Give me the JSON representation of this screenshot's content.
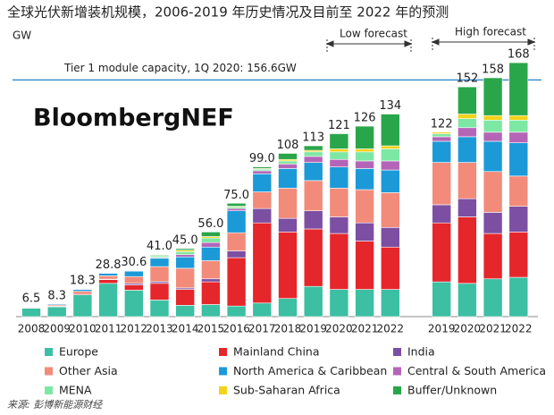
{
  "chart_data": {
    "type": "stacked_bar",
    "title": "全球光伏新增装机规模，2006-2019 年历史情况及目前至 2022 年的预测",
    "unit_label": "GW",
    "watermark": "BloombergNEF",
    "categories": [
      "2008",
      "2009",
      "2010",
      "2011",
      "2012",
      "2013",
      "2014",
      "2015",
      "2016",
      "2017",
      "2018",
      "2019",
      "2020",
      "2021",
      "2022",
      null,
      "2019",
      "2020",
      "2021",
      "2022"
    ],
    "series": [
      {
        "name": "Europe",
        "color": "#3cbfa3",
        "values": [
          5.5,
          6.5,
          14.5,
          22,
          17.5,
          11,
          7.5,
          8,
          7,
          9,
          12,
          20,
          18,
          18,
          18,
          null,
          23,
          22,
          25,
          26
        ]
      },
      {
        "name": "Mainland China",
        "color": "#e5262b",
        "values": [
          0.2,
          0.4,
          0.8,
          2.5,
          3.5,
          11,
          10.5,
          15,
          32,
          53,
          44,
          38,
          37,
          32,
          28,
          null,
          39,
          44,
          30,
          30
        ]
      },
      {
        "name": "India",
        "color": "#7c4fa3",
        "values": [
          0,
          0,
          0,
          0.3,
          1,
          1.1,
          1,
          2,
          4.5,
          9.5,
          9,
          12,
          11,
          12,
          13,
          null,
          12,
          12,
          14,
          17
        ]
      },
      {
        "name": "Other Asia",
        "color": "#f28b7a",
        "values": [
          0.5,
          0.8,
          1.5,
          2.2,
          4.5,
          10,
          13,
          12,
          12,
          11,
          20,
          20,
          19,
          22,
          23,
          null,
          28,
          24,
          27,
          20
        ]
      },
      {
        "name": "North America & Caribbean",
        "color": "#1c9ad8",
        "values": [
          0.3,
          0.6,
          1.2,
          1.7,
          3.6,
          5.5,
          7.5,
          9,
          14.5,
          12,
          13,
          12,
          14,
          14,
          15,
          null,
          14,
          17,
          20,
          22
        ]
      },
      {
        "name": "Central & South America",
        "color": "#b565b8",
        "values": [
          0,
          0,
          0.1,
          0.1,
          0.2,
          0.5,
          1.5,
          3,
          1.5,
          2,
          3,
          4,
          5,
          5,
          6,
          null,
          3,
          6,
          6,
          7
        ]
      },
      {
        "name": "MENA",
        "color": "#7de8a3",
        "values": [
          0,
          0,
          0.1,
          0,
          0.2,
          1,
          2,
          3,
          1,
          1,
          2,
          3,
          5,
          6,
          8,
          null,
          2,
          6,
          8,
          8
        ]
      },
      {
        "name": "Sub-Saharan Africa",
        "color": "#f3d21a",
        "values": [
          0,
          0,
          0,
          0,
          0.1,
          0.4,
          1,
          1,
          0.5,
          0.5,
          1,
          1,
          2,
          2,
          2,
          null,
          1,
          3,
          3,
          3
        ]
      },
      {
        "name": "Buffer/Unknown",
        "color": "#2aa64a",
        "values": [
          0,
          0,
          0.1,
          0,
          0,
          0.5,
          1,
          3,
          2,
          1,
          4,
          3,
          10,
          15,
          21,
          null,
          0,
          18,
          25,
          35
        ]
      }
    ],
    "totals": {
      "values": [
        6.5,
        8.3,
        18.3,
        28.8,
        30.6,
        41,
        45,
        56,
        75,
        99,
        108,
        113,
        121,
        126,
        134,
        null,
        122,
        152,
        158,
        168
      ],
      "value_labels": [
        "6.5",
        "8.3",
        "18.3",
        "28.8",
        "30.6",
        "41.0",
        "45.0",
        "56.0",
        "75.0",
        "99.0",
        "108",
        "113",
        "121",
        "126",
        "134",
        null,
        "122",
        "152",
        "158",
        "168"
      ]
    },
    "reference_line": {
      "value": 156.6,
      "label": "Tier 1 module capacity, 1Q 2020: 156.6GW",
      "color": "#3b8fd0"
    },
    "annotations": [
      "Low forecast",
      "High forecast"
    ],
    "ylim": [
      0,
      170
    ]
  },
  "source": "来源: 彭博新能源财经"
}
